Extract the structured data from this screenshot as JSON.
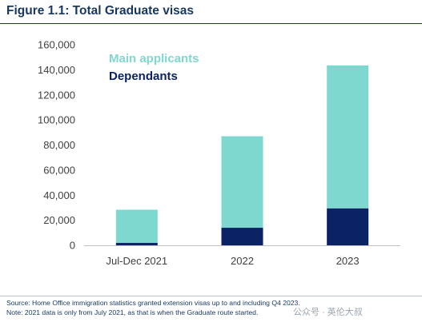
{
  "header": {
    "title": "Figure 1.1: Total Graduate visas"
  },
  "chart_data": {
    "type": "bar",
    "stacked": true,
    "categories": [
      "Jul-Dec 2021",
      "2022",
      "2023"
    ],
    "series": [
      {
        "name": "Dependants",
        "values": [
          1900,
          14000,
          29500
        ],
        "color": "#0b2265"
      },
      {
        "name": "Main applicants",
        "values": [
          26500,
          73000,
          114000
        ],
        "color": "#7fd8cf"
      }
    ],
    "ylim": [
      0,
      160000
    ],
    "yticks": [
      "0",
      "20,000",
      "40,000",
      "60,000",
      "80,000",
      "100,000",
      "120,000",
      "140,000",
      "160,000"
    ],
    "grid": false,
    "legend": "top-left"
  },
  "notes": {
    "source": "Source: Home Office immigration statistics granted extension visas up to and including Q4 2023.",
    "note": "Note: 2021 data is only from July 2021, as that is when the Graduate route started."
  },
  "watermark": "公众号 · 英伦大叔"
}
